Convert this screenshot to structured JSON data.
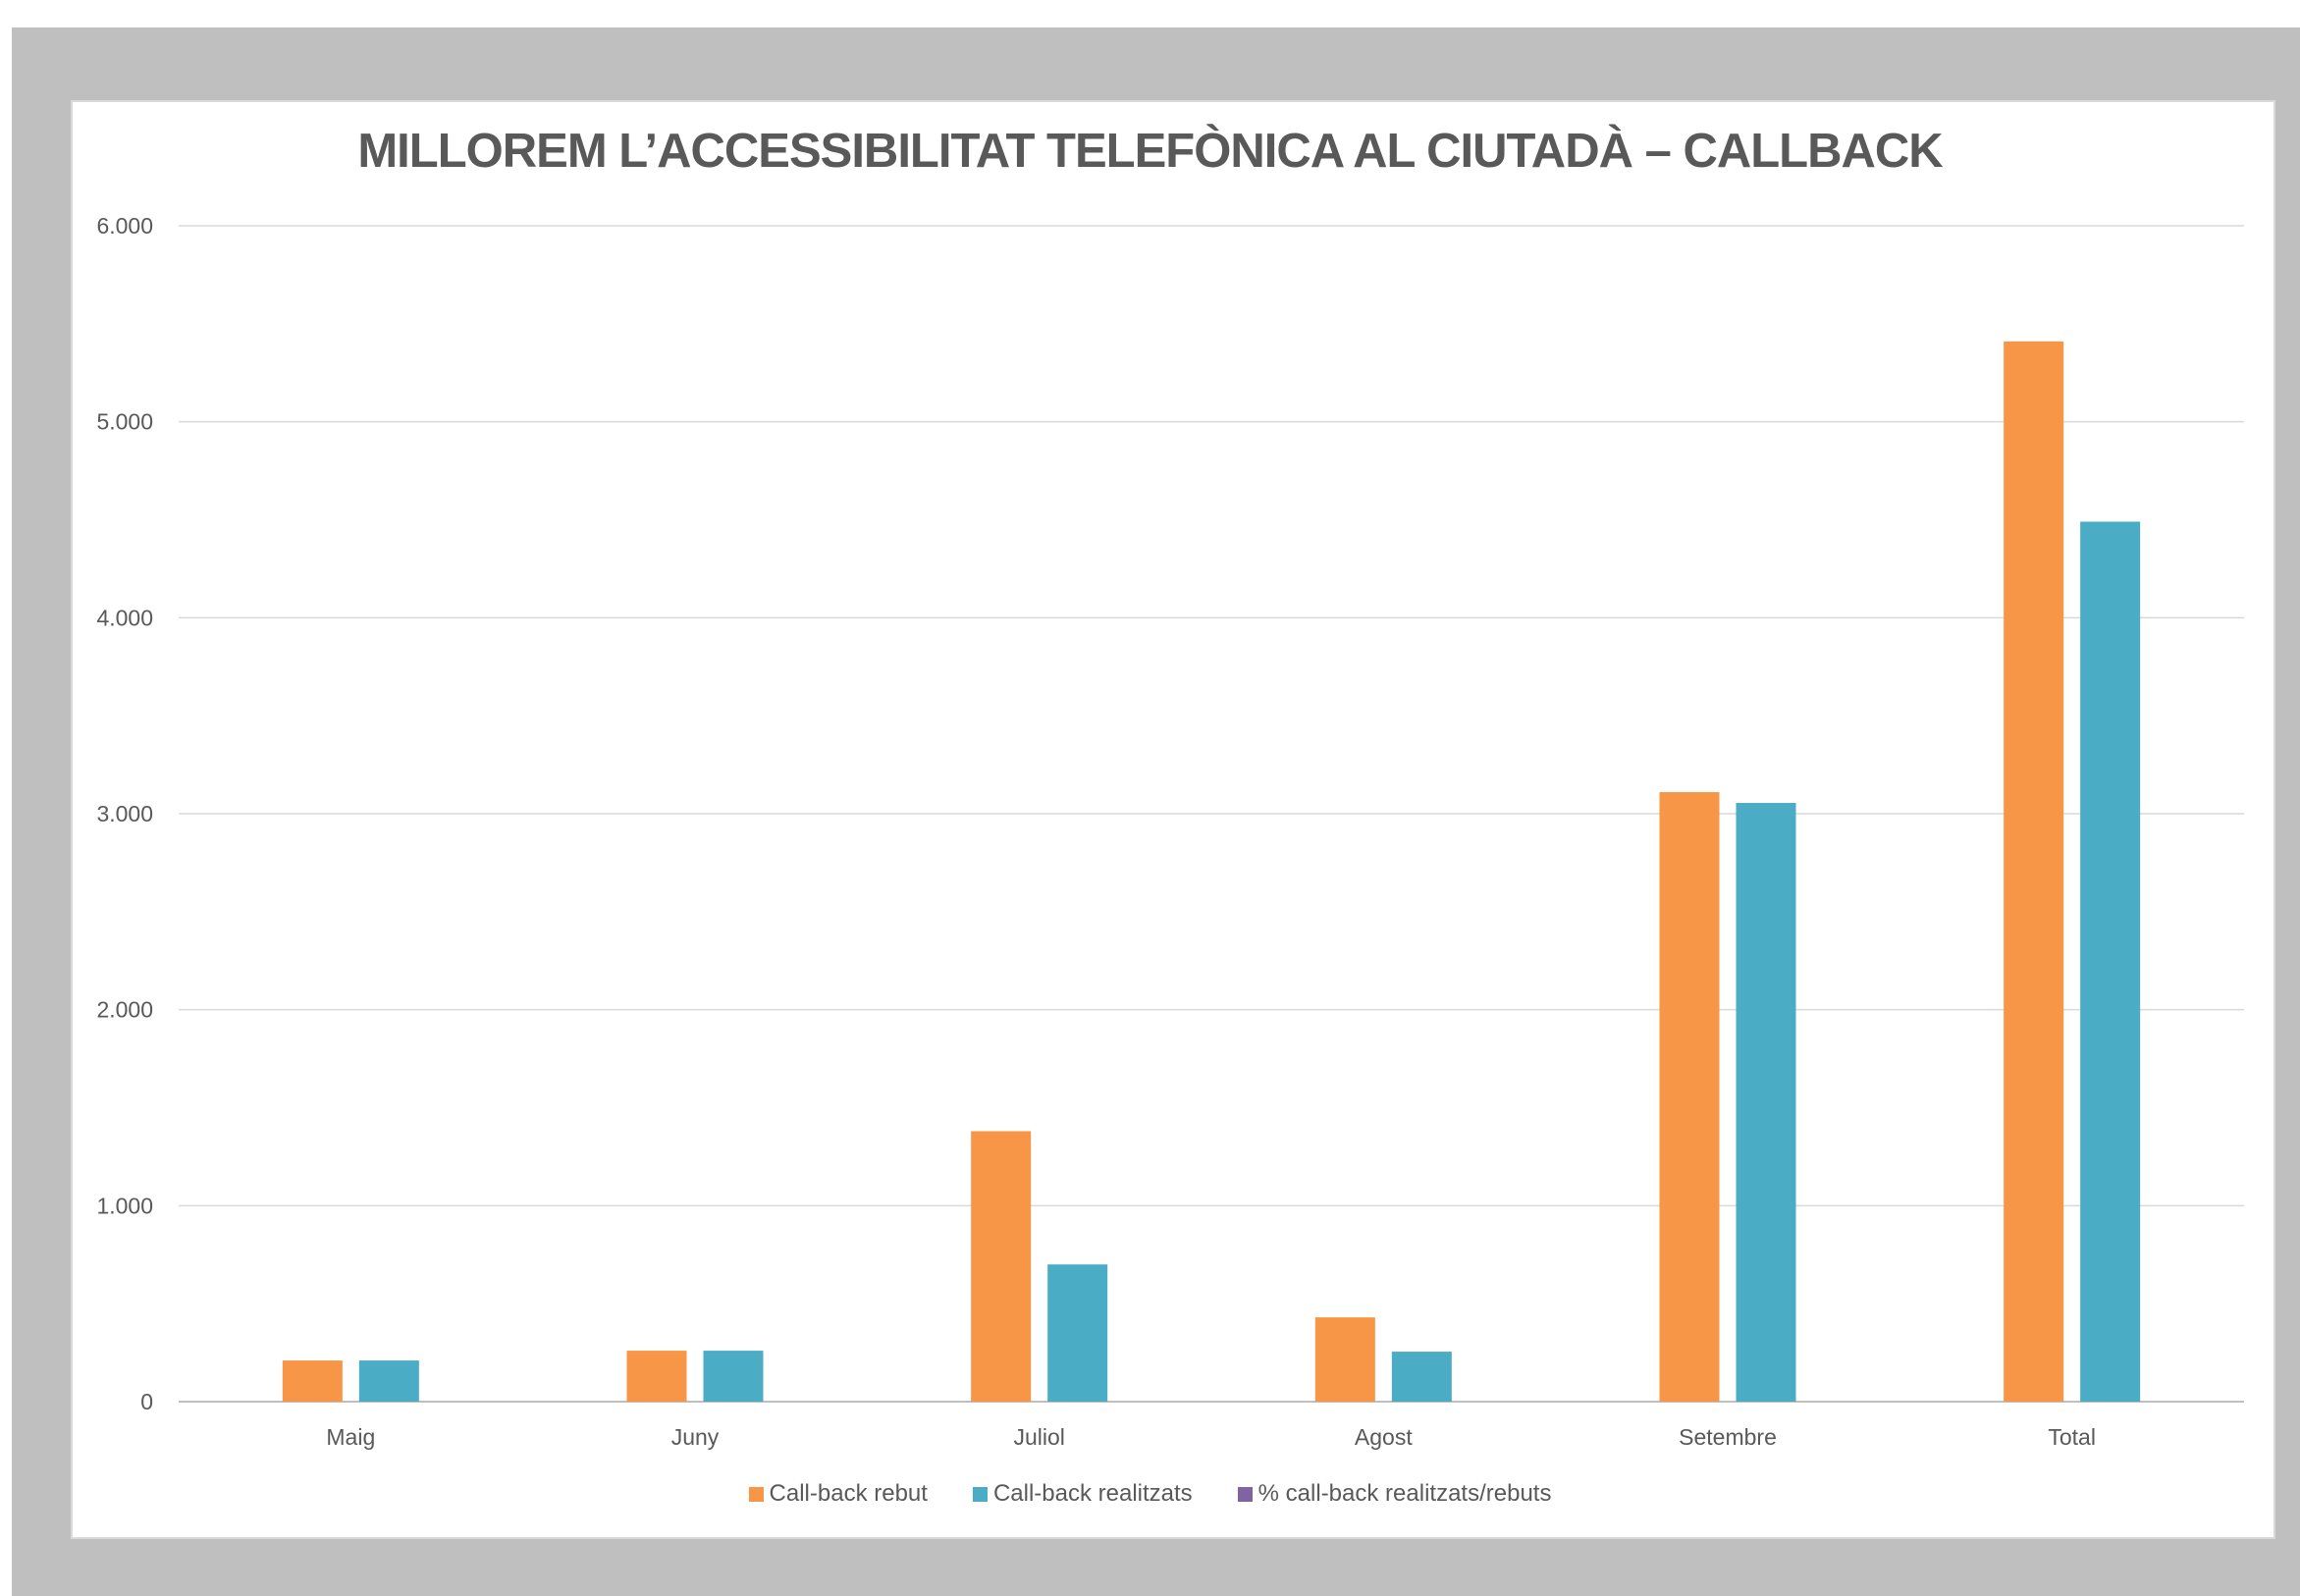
{
  "chart_data": {
    "type": "bar",
    "title": "MILLOREM L’ACCESSIBILITAT TELEFÒNICA AL CIUTADÀ – CALLBACK",
    "categories": [
      "Maig",
      "Juny",
      "Juliol",
      "Agost",
      "Setembre",
      "Total"
    ],
    "series": [
      {
        "name": "Call-back rebut",
        "color": "#f79646",
        "values": [
          210,
          260,
          1380,
          430,
          3110,
          5410
        ]
      },
      {
        "name": "Call-back realitzats",
        "color": "#4bacc6",
        "values": [
          210,
          260,
          700,
          255,
          3055,
          4490
        ]
      },
      {
        "name": "% call-back realitzats/rebuts",
        "color": "#8064a2",
        "values": [
          null,
          null,
          null,
          null,
          null,
          null
        ]
      }
    ],
    "yticks": [
      "0",
      "1.000",
      "2.000",
      "3.000",
      "4.000",
      "5.000",
      "6.000"
    ],
    "ylim": [
      0,
      6000
    ],
    "xlabel": "",
    "ylabel": "",
    "grid": true,
    "legend_position": "bottom"
  }
}
